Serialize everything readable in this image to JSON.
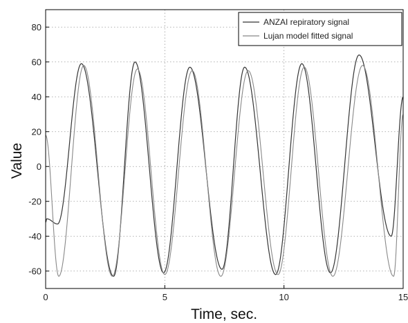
{
  "chart_data": {
    "type": "line",
    "title": "",
    "xlabel": "Time, sec.",
    "ylabel": "Value",
    "xlim": [
      0,
      15
    ],
    "ylim": [
      -70,
      90
    ],
    "grid": true,
    "legend_placement": "top-right",
    "x_ticks": [
      "0",
      "5",
      "10",
      "15"
    ],
    "y_ticks": [
      "-60",
      "-40",
      "-20",
      "0",
      "20",
      "40",
      "60",
      "80"
    ],
    "series": [
      {
        "name": "ANZAI repiratory signal",
        "color": "#333333",
        "x": [
          0,
          0.05,
          0.5,
          1.5,
          2.85,
          3.75,
          4.95,
          6.05,
          7.4,
          8.35,
          9.65,
          10.75,
          11.95,
          13.15,
          14.5,
          15
        ],
        "y": [
          -32,
          -30,
          -33,
          59,
          -63,
          60,
          -61,
          57,
          -59,
          57,
          -62,
          59,
          -61,
          64,
          -40,
          40
        ]
      },
      {
        "name": "Lujan model fitted signal",
        "color": "#888888",
        "x": [
          0,
          0.55,
          1.6,
          2.8,
          3.85,
          5.0,
          6.15,
          7.35,
          8.5,
          9.75,
          10.85,
          12.05,
          13.3,
          14.6,
          15
        ],
        "y": [
          18,
          -63,
          58,
          -63,
          56,
          -62,
          55,
          -63,
          55,
          -62,
          57,
          -63,
          58,
          -63,
          30
        ]
      }
    ]
  }
}
